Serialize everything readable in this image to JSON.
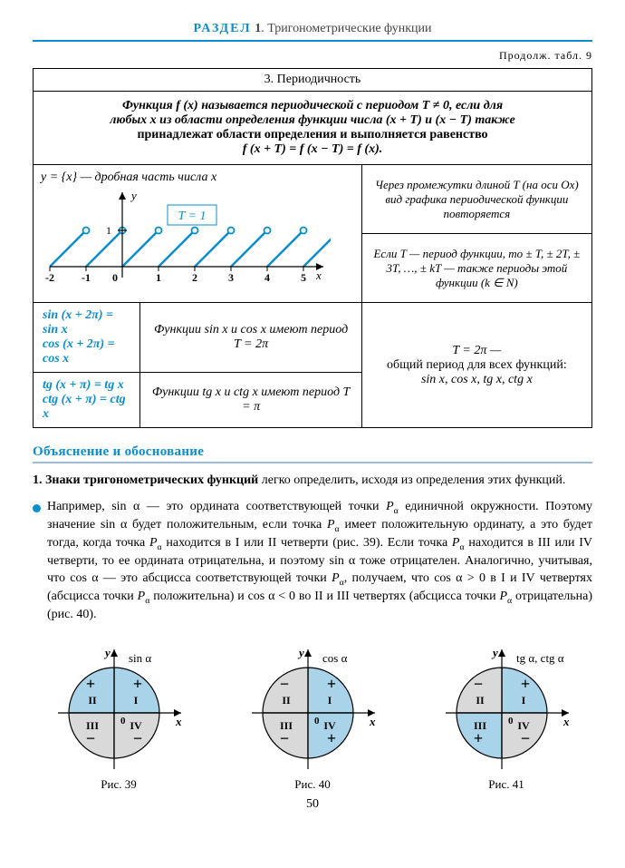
{
  "header": {
    "section_word": "РАЗДЕЛ",
    "section_num": "1",
    "section_title": "Тригонометрические функции"
  },
  "continuation": "Продолж. табл. 9",
  "table": {
    "row3_title": "3. Периодичность",
    "definition_lines": [
      "Функция f (x) называется периодической с периодом T ≠ 0, если для",
      "любых x из области определения функции числа (x + T) и (x − T) также",
      "принадлежат области определения и выполняется равенство",
      "f (x + T) = f (x − T) = f (x)."
    ],
    "graph_caption": "y = {x} — дробная часть числа x",
    "t_box": "T = 1",
    "graph": {
      "x_ticks": [
        "-2",
        "-1",
        "0",
        "1",
        "2",
        "3",
        "4",
        "5"
      ],
      "x_label": "x",
      "y_label": "y",
      "y_one": "1",
      "line_color": "#0b8dcd",
      "circle_fill": "#ffffff",
      "axis_color": "#000000"
    },
    "side1": "Через промежутки длиной T (на оси Ox) вид графика периоди­ческой функции повторяется",
    "side2": "Если T — период функции, то ± T, ± 2T, ± 3T, …, ± kT — также периоды этой функции (k ∈ N)",
    "bottom": {
      "c1a": "sin (x + 2π) = sin x",
      "c1b": "cos (x + 2π) = cos x",
      "c1c": "tg (x + π) = tg x",
      "c1d": "ctg (x + π) = ctg x",
      "c2a": "Функции sin x и cos x имеют период T = 2π",
      "c2b": "Функции tg x и ctg x имеют период T = π",
      "c3a": "T = 2π —",
      "c3b": "общий период для всех функций:",
      "c3c": "sin x, cos x, tg x, ctg x"
    }
  },
  "explain_heading": "Объяснение и обоснование",
  "paragraph1_lead": "1.  Знаки тригонометрических функций",
  "paragraph1_tail": " легко определить, исходя из опреде­ления этих функций.",
  "bullet_text": "Например, sin α — это ордината соответствующей точки P  единичной ок­ружности. Поэтому значение sin α будет положительным, если точка P  имеет положительную ординату, а это будет тогда, когда точка P  находит­ся в I или II четверти (рис. 39). Если точка P  находится в III или IV четвер­ти, то ее ордината отрицательна, и поэтому sin α тоже отрицателен. Аналогично, учитывая, что cos α — это абсцисса соответствующей точки P , получаем, что cos α > 0 в I и IV четвертях (абсцисса точки P  положительна) и cos α < 0 во II и III четвертях (абсцисса точки P  отрицательна) (рис. 40).",
  "figures": {
    "colors": {
      "pos": "#a9d3e8",
      "neg": "#d9d9d9",
      "stroke": "#000000",
      "label": "#000000",
      "axis": "#000000"
    },
    "items": [
      {
        "id": "fig39",
        "func_label": "sin α",
        "caption": "Рис. 39",
        "quadrants": {
          "I": "+",
          "II": "+",
          "III": "−",
          "IV": "−"
        }
      },
      {
        "id": "fig40",
        "func_label": "cos α",
        "caption": "Рис. 40",
        "quadrants": {
          "I": "+",
          "II": "−",
          "III": "−",
          "IV": "+"
        }
      },
      {
        "id": "fig41",
        "func_label": "tg α, ctg α",
        "caption": "Рис. 41",
        "quadrants": {
          "I": "+",
          "II": "−",
          "III": "+",
          "IV": "−"
        }
      }
    ],
    "roman": {
      "I": "I",
      "II": "II",
      "III": "III",
      "IV": "IV"
    },
    "axis_y": "y",
    "axis_x": "x",
    "axis_zero": "0"
  },
  "page_number": "50"
}
